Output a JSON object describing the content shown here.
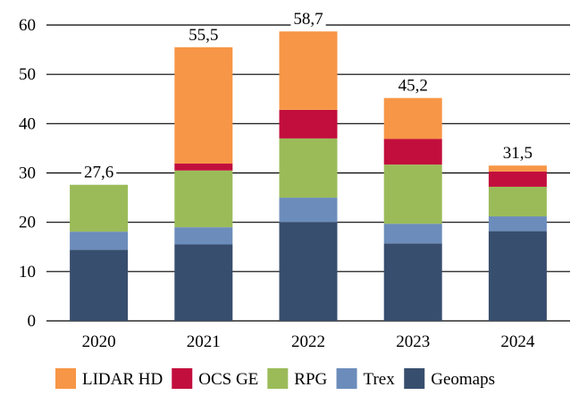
{
  "chart_data": {
    "type": "bar",
    "stacked": true,
    "title": "",
    "xlabel": "",
    "ylabel": "",
    "ylim": [
      0,
      60
    ],
    "yticks": [
      0,
      10,
      20,
      30,
      40,
      50,
      60
    ],
    "grid": true,
    "legend_position": "bottom",
    "categories": [
      "2020",
      "2021",
      "2022",
      "2023",
      "2024"
    ],
    "totals": [
      "27,6",
      "55,5",
      "58,7",
      "45,2",
      "31,5"
    ],
    "series": [
      {
        "name": "Geomaps",
        "color": "#384e6e",
        "values": [
          14.4,
          15.5,
          20.0,
          15.7,
          18.2
        ]
      },
      {
        "name": "Trex",
        "color": "#6c8dbb",
        "values": [
          3.7,
          3.5,
          5.0,
          4.0,
          3.0
        ]
      },
      {
        "name": "RPG",
        "color": "#9bbb59",
        "values": [
          9.5,
          11.5,
          12.0,
          12.0,
          6.0
        ]
      },
      {
        "name": "OCS GE",
        "color": "#c20e3d",
        "values": [
          0,
          1.4,
          5.8,
          5.2,
          3.1
        ]
      },
      {
        "name": "LIDAR HD",
        "color": "#f79646",
        "values": [
          0,
          23.6,
          15.9,
          8.3,
          1.2
        ]
      }
    ],
    "legend_order": [
      "LIDAR HD",
      "OCS GE",
      "RPG",
      "Trex",
      "Geomaps"
    ]
  }
}
